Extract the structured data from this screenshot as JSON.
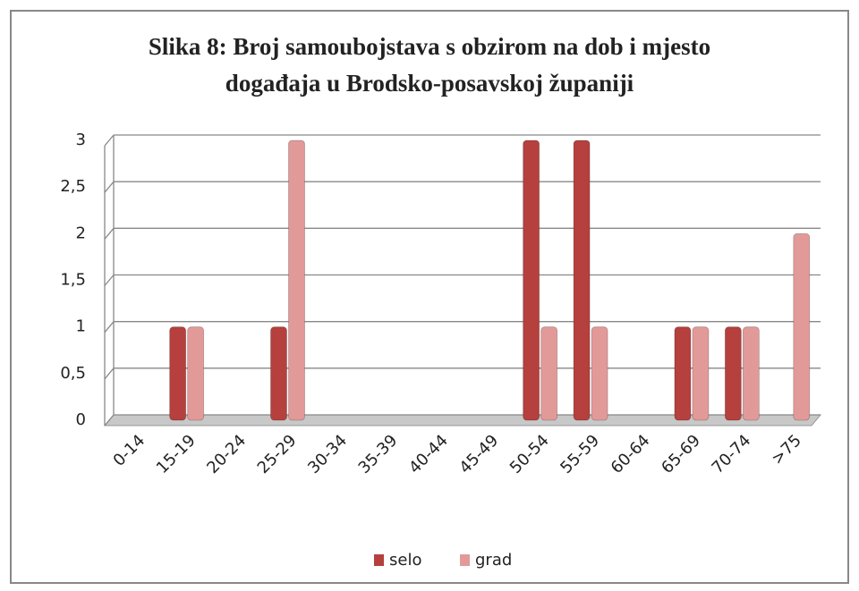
{
  "chart_data": {
    "type": "bar",
    "title": [
      "Slika 8: Broj samoubojstava s obzirom na dob i mjesto",
      "događaja u Brodsko-posavskoj županiji"
    ],
    "categories": [
      "0-14",
      "15-19",
      "20-24",
      "25-29",
      "30-34",
      "35-39",
      "40-44",
      "45-49",
      "50-54",
      "55-59",
      "60-64",
      "65-69",
      "70-74",
      ">75"
    ],
    "series": [
      {
        "name": "selo",
        "color": "#b5403d",
        "values": [
          0,
          1,
          0,
          1,
          0,
          0,
          0,
          0,
          3,
          3,
          0,
          1,
          1,
          0
        ]
      },
      {
        "name": "grad",
        "color": "#e29a98",
        "values": [
          0,
          1,
          0,
          3,
          0,
          0,
          0,
          0,
          1,
          1,
          0,
          1,
          1,
          2
        ]
      }
    ],
    "ylim": [
      0,
      3
    ],
    "yticks": [
      0,
      {
        "value": 0.5,
        "label": "0,5"
      },
      1,
      {
        "value": 1.5,
        "label": "1,5"
      },
      2,
      {
        "value": 2.5,
        "label": "2,5"
      },
      3
    ],
    "grid": true,
    "legend": "bottom"
  }
}
